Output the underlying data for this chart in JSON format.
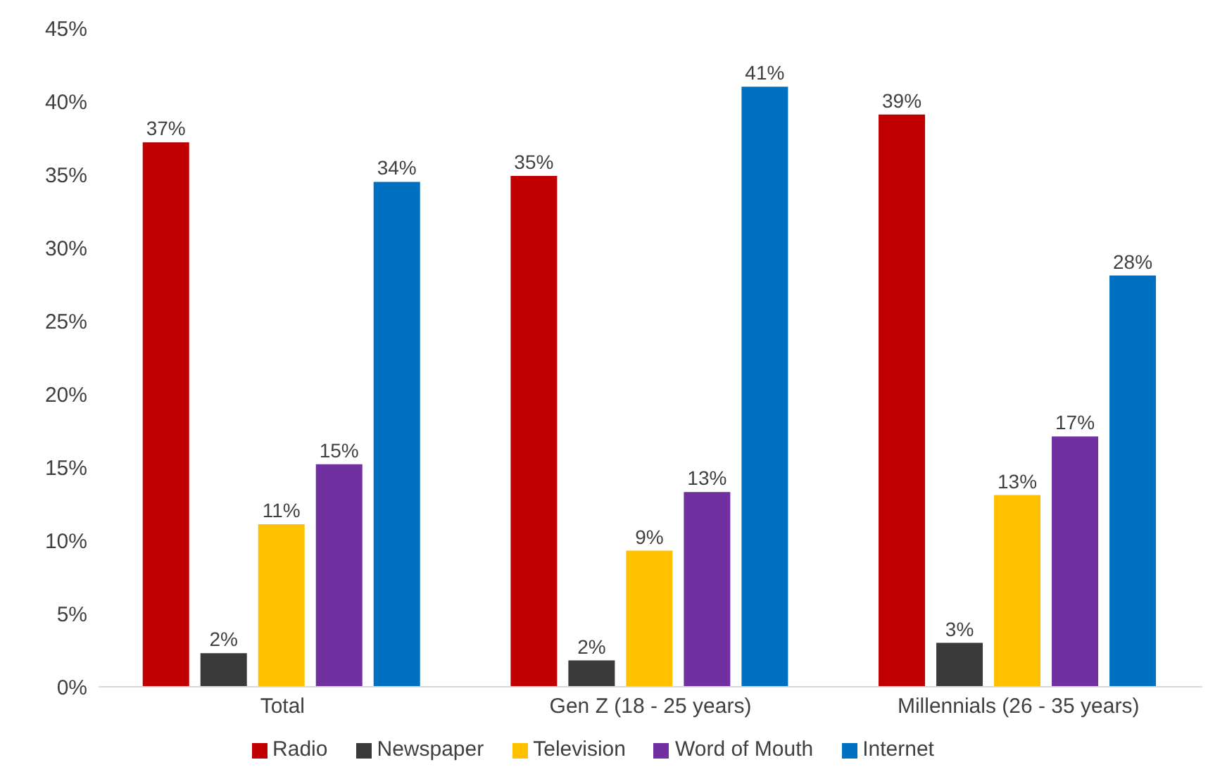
{
  "chart_data": {
    "type": "bar",
    "categories": [
      "Total",
      "Gen Z (18 - 25 years)",
      "Millennials (26 - 35 years)"
    ],
    "series": [
      {
        "name": "Radio",
        "color": "#c00000",
        "values": [
          37.2,
          34.9,
          39.1
        ],
        "value_labels": [
          "37%",
          "35%",
          "39%"
        ]
      },
      {
        "name": "Newspaper",
        "color": "#3a3a3a",
        "values": [
          2.3,
          1.8,
          3.0
        ],
        "value_labels": [
          "2%",
          "2%",
          "3%"
        ]
      },
      {
        "name": "Television",
        "color": "#ffc000",
        "values": [
          11.1,
          9.3,
          13.1
        ],
        "value_labels": [
          "11%",
          "9%",
          "13%"
        ]
      },
      {
        "name": "Word of Mouth",
        "color": "#7030a0",
        "values": [
          15.2,
          13.3,
          17.1
        ],
        "value_labels": [
          "15%",
          "13%",
          "17%"
        ]
      },
      {
        "name": "Internet",
        "color": "#0070c0",
        "values": [
          34.5,
          41.0,
          28.1
        ],
        "value_labels": [
          "34%",
          "41%",
          "28%"
        ]
      }
    ],
    "ylim": [
      0,
      45
    ],
    "yticks": [
      {
        "value": 0,
        "label": "0%"
      },
      {
        "value": 5,
        "label": "5%"
      },
      {
        "value": 10,
        "label": "10%"
      },
      {
        "value": 15,
        "label": "15%"
      },
      {
        "value": 20,
        "label": "20%"
      },
      {
        "value": 25,
        "label": "25%"
      },
      {
        "value": 30,
        "label": "30%"
      },
      {
        "value": 35,
        "label": "35%"
      },
      {
        "value": 40,
        "label": "40%"
      },
      {
        "value": 45,
        "label": "45%"
      }
    ],
    "grid": false,
    "legend": "bottom"
  }
}
